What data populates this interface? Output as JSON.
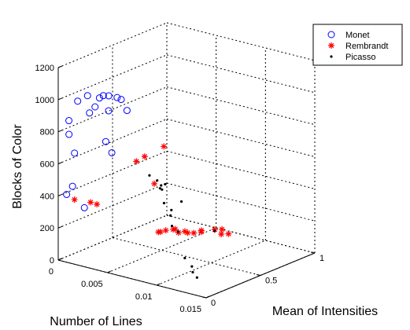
{
  "chart_data": {
    "type": "scatter",
    "dimensions": 3,
    "xlabel": "Number of Lines",
    "ylabel": "Mean of Intensities",
    "zlabel": "Blocks of Color",
    "xlim": [
      0,
      0.015
    ],
    "ylim": [
      0,
      1
    ],
    "zlim": [
      0,
      1200
    ],
    "x_ticks": [
      "0",
      "0.005",
      "0.01",
      "0.015"
    ],
    "y_ticks": [
      "0",
      "0.5",
      "1"
    ],
    "z_ticks": [
      "0",
      "200",
      "400",
      "600",
      "800",
      "1000",
      "1200"
    ],
    "grid": true,
    "legend_position": "top-right",
    "series": [
      {
        "name": "Monet",
        "marker": "circle",
        "color": "#0000ff",
        "points": [
          {
            "x": 0.0027,
            "y": 0.17,
            "z": 1020
          },
          {
            "x": 0.0029,
            "y": 0.2,
            "z": 920
          },
          {
            "x": 0.0038,
            "y": 0.12,
            "z": 1050
          },
          {
            "x": 0.0041,
            "y": 0.17,
            "z": 1030
          },
          {
            "x": 0.0044,
            "y": 0.18,
            "z": 1020
          },
          {
            "x": 0.0022,
            "y": 0.07,
            "z": 1040
          },
          {
            "x": 0.0033,
            "y": 0.08,
            "z": 1040
          },
          {
            "x": 0.0034,
            "y": 0.03,
            "z": 1000
          },
          {
            "x": 0.004,
            "y": 0.27,
            "z": 920
          },
          {
            "x": 0.0012,
            "y": 0.07,
            "z": 990
          },
          {
            "x": 0.0013,
            "y": 0.17,
            "z": 890
          },
          {
            "x": 0.0029,
            "y": 0.23,
            "z": 650
          },
          {
            "x": 0.0035,
            "y": 0.12,
            "z": 760
          },
          {
            "x": 0.0002,
            "y": 0.08,
            "z": 850
          },
          {
            "x": 0.0001,
            "y": 0.09,
            "z": 760
          },
          {
            "x": 0.0011,
            "y": 0.05,
            "z": 670
          },
          {
            "x": 0.0009,
            "y": 0.05,
            "z": 460
          },
          {
            "x": 0.0003,
            "y": 0.05,
            "z": 400
          },
          {
            "x": 0.001,
            "y": 0.15,
            "z": 300
          }
        ]
      },
      {
        "name": "Rembrandt",
        "marker": "star",
        "color": "#ff0000",
        "points": [
          {
            "x": 0.0048,
            "y": 0.36,
            "z": 620
          },
          {
            "x": 0.0052,
            "y": 0.5,
            "z": 650
          },
          {
            "x": 0.0055,
            "y": 0.22,
            "z": 640
          },
          {
            "x": 0.0049,
            "y": 0.44,
            "z": 430
          },
          {
            "x": 0.0011,
            "y": 0.05,
            "z": 380
          },
          {
            "x": 0.0013,
            "y": 0.18,
            "z": 330
          },
          {
            "x": 0.0015,
            "y": 0.22,
            "z": 310
          },
          {
            "x": 0.003,
            "y": 0.65,
            "z": 40
          },
          {
            "x": 0.0031,
            "y": 0.66,
            "z": 40
          },
          {
            "x": 0.0032,
            "y": 0.7,
            "z": 40
          },
          {
            "x": 0.0034,
            "y": 0.75,
            "z": 35
          },
          {
            "x": 0.0036,
            "y": 0.75,
            "z": 40
          },
          {
            "x": 0.0035,
            "y": 0.79,
            "z": 5
          },
          {
            "x": 0.0037,
            "y": 0.83,
            "z": 5
          },
          {
            "x": 0.0041,
            "y": 0.82,
            "z": 5
          },
          {
            "x": 0.0045,
            "y": 0.84,
            "z": 5
          },
          {
            "x": 0.0046,
            "y": 0.9,
            "z": 5
          },
          {
            "x": 0.0048,
            "y": 0.88,
            "z": 5
          },
          {
            "x": 0.0053,
            "y": 0.96,
            "z": 5
          },
          {
            "x": 0.0057,
            "y": 0.99,
            "z": 5
          },
          {
            "x": 0.0064,
            "y": 0.92,
            "z": 5
          },
          {
            "x": 0.0068,
            "y": 0.95,
            "z": 5
          }
        ]
      },
      {
        "name": "Picasso",
        "marker": "dot",
        "color": "#000000",
        "points": [
          {
            "x": 0.0087,
            "y": 0.05,
            "z": 650
          },
          {
            "x": 0.0097,
            "y": 0.03,
            "z": 640
          },
          {
            "x": 0.0103,
            "y": 0.05,
            "z": 620
          },
          {
            "x": 0.0101,
            "y": 0.02,
            "z": 600
          },
          {
            "x": 0.009,
            "y": 0.13,
            "z": 570
          },
          {
            "x": 0.0092,
            "y": 0.12,
            "z": 550
          },
          {
            "x": 0.0104,
            "y": 0.03,
            "z": 510
          },
          {
            "x": 0.0107,
            "y": 0.07,
            "z": 460
          },
          {
            "x": 0.0112,
            "y": 0.03,
            "z": 380
          },
          {
            "x": 0.0105,
            "y": 0.08,
            "z": 420
          },
          {
            "x": 0.0117,
            "y": 0.04,
            "z": 350
          },
          {
            "x": 0.0125,
            "y": 0.03,
            "z": 200
          },
          {
            "x": 0.013,
            "y": 0.05,
            "z": 150
          },
          {
            "x": 0.0132,
            "y": 0.04,
            "z": 120
          },
          {
            "x": 0.0133,
            "y": 0.07,
            "z": 80
          },
          {
            "x": 0.0115,
            "y": 0.09,
            "z": 520
          },
          {
            "x": 0.0055,
            "y": 0.94,
            "z": 5
          }
        ]
      }
    ]
  }
}
